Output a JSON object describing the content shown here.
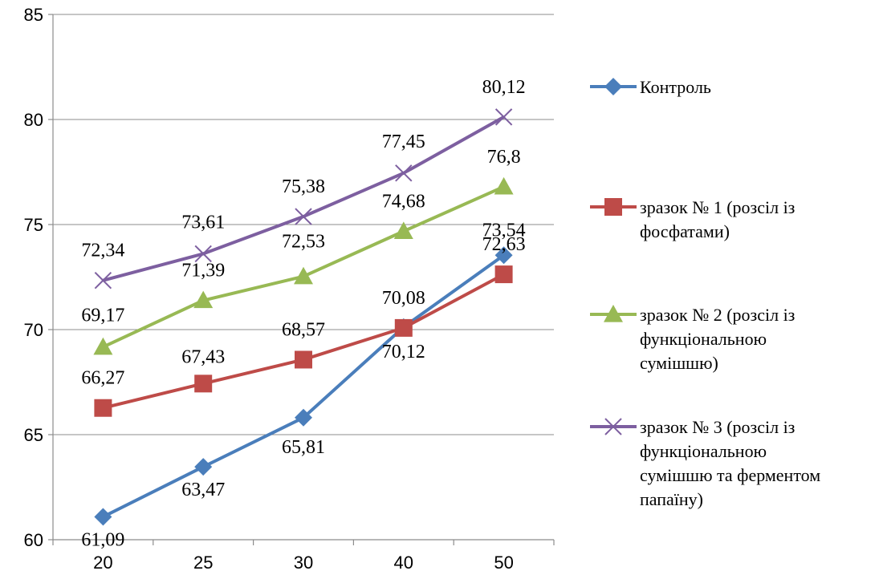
{
  "chart_data": {
    "type": "line",
    "title": "",
    "xlabel": "",
    "ylabel": "",
    "categories": [
      "20",
      "25",
      "30",
      "40",
      "50"
    ],
    "ylim": [
      60,
      85
    ],
    "yticks": [
      "60",
      "65",
      "70",
      "75",
      "80",
      "85"
    ],
    "grid": "horizontal",
    "legend_position": "right",
    "series": [
      {
        "name": "Контроль",
        "legend_lines": [
          "Контроль"
        ],
        "color": "#4A7EBB",
        "marker": "diamond",
        "values": [
          61.09,
          63.47,
          65.81,
          70.12,
          73.54
        ],
        "labels": [
          "61,09",
          "63,47",
          "65,81",
          "70,12",
          "73,54"
        ]
      },
      {
        "name": "зразок № 1 (розсіл із фосфатами)",
        "legend_lines": [
          "зразок № 1 (розсіл із",
          "фосфатами)"
        ],
        "color": "#BE4B48",
        "marker": "square",
        "values": [
          66.27,
          67.43,
          68.57,
          70.08,
          72.63
        ],
        "labels": [
          "66,27",
          "67,43",
          "68,57",
          "70,08",
          "72,63"
        ]
      },
      {
        "name": "зразок № 2 (розсіл із функціональною сумішшю)",
        "legend_lines": [
          "зразок № 2 (розсіл із",
          "функціональною",
          "сумішшю)"
        ],
        "color": "#98B954",
        "marker": "triangle",
        "values": [
          69.17,
          71.39,
          72.53,
          74.68,
          76.8
        ],
        "labels": [
          "69,17",
          "71,39",
          "72,53",
          "74,68",
          "76,8"
        ]
      },
      {
        "name": "зразок № 3 (розсіл із функціональною сумішшю та ферментом папаїну)",
        "legend_lines": [
          "зразок № 3 (розсіл із",
          "функціональною",
          "сумішшю та ферментом",
          "папаїну)"
        ],
        "color": "#7D5FA0",
        "marker": "x",
        "values": [
          72.34,
          73.61,
          75.38,
          77.45,
          80.12
        ],
        "labels": [
          "72,34",
          "73,61",
          "75,38",
          "77,45",
          "80,12"
        ]
      }
    ]
  }
}
